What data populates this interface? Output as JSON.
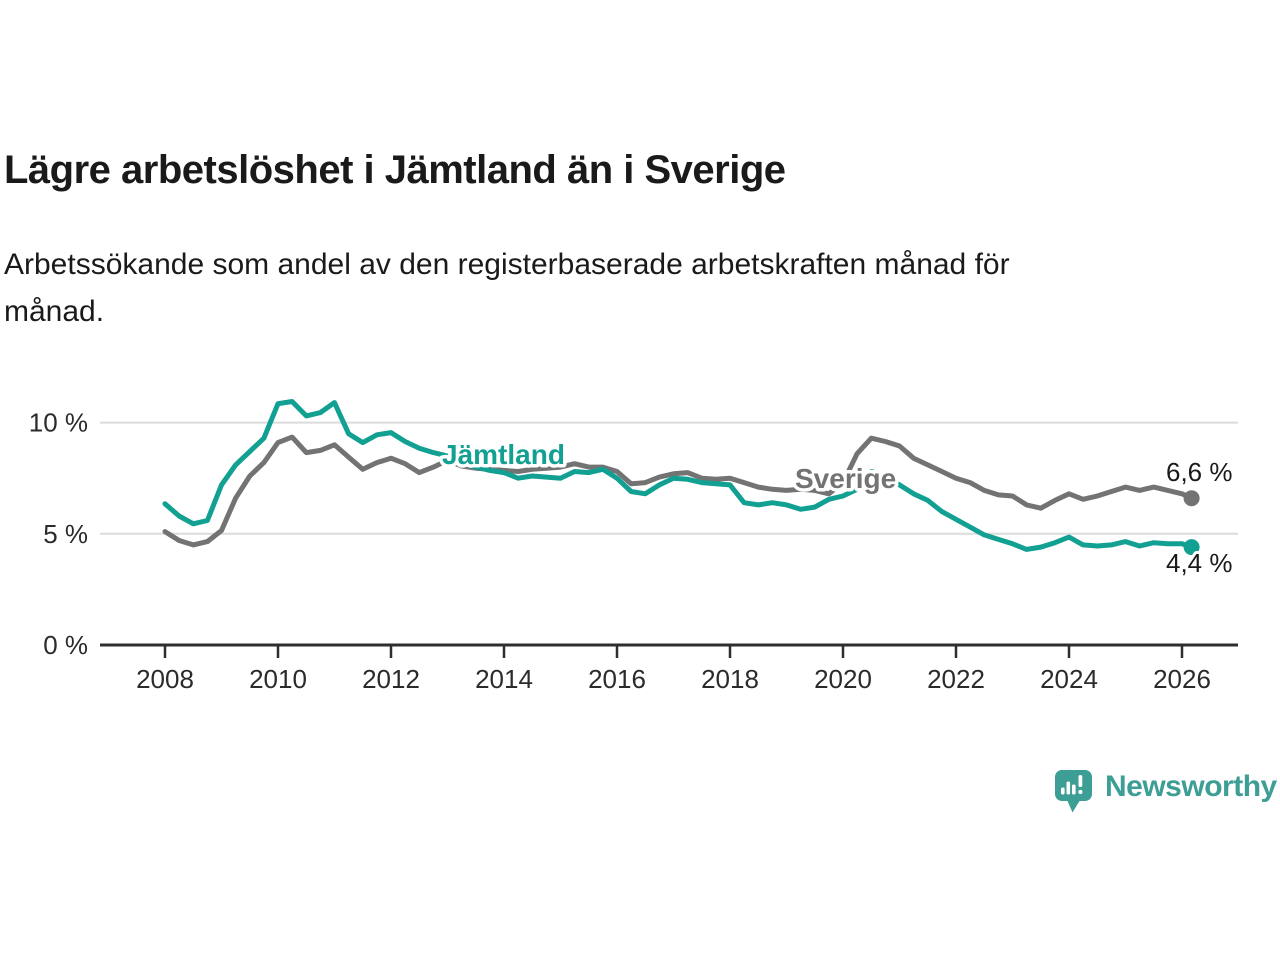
{
  "header": {
    "title": "Lägre arbetslöshet i Jämtland än i Sverige",
    "subtitle_lines": [
      "Arbetssökande som andel av den registerbaserade arbetskraften månad för",
      "månad."
    ]
  },
  "chart_data": {
    "type": "line",
    "title": "Lägre arbetslöshet i Jämtland än i Sverige",
    "xlabel": "",
    "ylabel": "Arbetssökande som andel av den registerbaserade arbetskraften",
    "x_unit": "decimal year, monthly series 2008 - feb 2026",
    "xlim": [
      2007.9,
      2026.9
    ],
    "ylim": [
      0,
      11.6
    ],
    "grid": "horizontal",
    "y_ticks": [
      {
        "value": 0,
        "label": "0 %"
      },
      {
        "value": 5,
        "label": "5 %"
      },
      {
        "value": 10,
        "label": "10 %"
      }
    ],
    "x_ticks": [
      {
        "value": 2008,
        "label": "2008"
      },
      {
        "value": 2010,
        "label": "2010"
      },
      {
        "value": 2012,
        "label": "2012"
      },
      {
        "value": 2014,
        "label": "2014"
      },
      {
        "value": 2016,
        "label": "2016"
      },
      {
        "value": 2018,
        "label": "2018"
      },
      {
        "value": 2020,
        "label": "2020"
      },
      {
        "value": 2022,
        "label": "2022"
      },
      {
        "value": 2024,
        "label": "2024"
      },
      {
        "value": 2026,
        "label": "2026"
      }
    ],
    "series": [
      {
        "name": "Jämtland",
        "color": "#12a092",
        "end_value": 4.4,
        "end_label": "4,4 %",
        "points": [
          [
            2008.0,
            6.35
          ],
          [
            2008.25,
            5.8
          ],
          [
            2008.5,
            5.45
          ],
          [
            2008.75,
            5.6
          ],
          [
            2009.0,
            7.2
          ],
          [
            2009.25,
            8.1
          ],
          [
            2009.5,
            8.7
          ],
          [
            2009.75,
            9.3
          ],
          [
            2010.0,
            10.85
          ],
          [
            2010.25,
            10.95
          ],
          [
            2010.5,
            10.3
          ],
          [
            2010.75,
            10.45
          ],
          [
            2011.0,
            10.9
          ],
          [
            2011.25,
            9.5
          ],
          [
            2011.5,
            9.1
          ],
          [
            2011.75,
            9.45
          ],
          [
            2012.0,
            9.55
          ],
          [
            2012.25,
            9.15
          ],
          [
            2012.5,
            8.85
          ],
          [
            2012.75,
            8.65
          ],
          [
            2013.0,
            8.5
          ],
          [
            2013.25,
            8.2
          ],
          [
            2013.5,
            8.0
          ],
          [
            2013.75,
            7.85
          ],
          [
            2014.0,
            7.75
          ],
          [
            2014.25,
            7.5
          ],
          [
            2014.5,
            7.6
          ],
          [
            2014.75,
            7.55
          ],
          [
            2015.0,
            7.5
          ],
          [
            2015.25,
            7.8
          ],
          [
            2015.5,
            7.75
          ],
          [
            2015.75,
            7.9
          ],
          [
            2016.0,
            7.5
          ],
          [
            2016.25,
            6.9
          ],
          [
            2016.5,
            6.8
          ],
          [
            2016.75,
            7.2
          ],
          [
            2017.0,
            7.5
          ],
          [
            2017.25,
            7.45
          ],
          [
            2017.5,
            7.3
          ],
          [
            2017.75,
            7.25
          ],
          [
            2018.0,
            7.2
          ],
          [
            2018.25,
            6.4
          ],
          [
            2018.5,
            6.3
          ],
          [
            2018.75,
            6.4
          ],
          [
            2019.0,
            6.3
          ],
          [
            2019.25,
            6.1
          ],
          [
            2019.5,
            6.2
          ],
          [
            2019.75,
            6.55
          ],
          [
            2020.0,
            6.7
          ],
          [
            2020.25,
            7.0
          ],
          [
            2020.5,
            7.8
          ],
          [
            2020.75,
            7.6
          ],
          [
            2021.0,
            7.2
          ],
          [
            2021.25,
            6.8
          ],
          [
            2021.5,
            6.5
          ],
          [
            2021.75,
            6.0
          ],
          [
            2022.0,
            5.65
          ],
          [
            2022.25,
            5.3
          ],
          [
            2022.5,
            4.95
          ],
          [
            2022.75,
            4.75
          ],
          [
            2023.0,
            4.55
          ],
          [
            2023.25,
            4.3
          ],
          [
            2023.5,
            4.4
          ],
          [
            2023.75,
            4.6
          ],
          [
            2024.0,
            4.85
          ],
          [
            2024.25,
            4.5
          ],
          [
            2024.5,
            4.45
          ],
          [
            2024.75,
            4.5
          ],
          [
            2025.0,
            4.65
          ],
          [
            2025.25,
            4.45
          ],
          [
            2025.5,
            4.6
          ],
          [
            2025.75,
            4.55
          ],
          [
            2026.0,
            4.55
          ],
          [
            2026.17,
            4.4
          ]
        ]
      },
      {
        "name": "Sverige",
        "color": "#737373",
        "end_value": 6.6,
        "end_label": "6,6 %",
        "points": [
          [
            2008.0,
            5.1
          ],
          [
            2008.25,
            4.7
          ],
          [
            2008.5,
            4.5
          ],
          [
            2008.75,
            4.65
          ],
          [
            2009.0,
            5.15
          ],
          [
            2009.25,
            6.6
          ],
          [
            2009.5,
            7.6
          ],
          [
            2009.75,
            8.2
          ],
          [
            2010.0,
            9.1
          ],
          [
            2010.25,
            9.35
          ],
          [
            2010.5,
            8.65
          ],
          [
            2010.75,
            8.75
          ],
          [
            2011.0,
            9.0
          ],
          [
            2011.25,
            8.45
          ],
          [
            2011.5,
            7.9
          ],
          [
            2011.75,
            8.2
          ],
          [
            2012.0,
            8.4
          ],
          [
            2012.25,
            8.15
          ],
          [
            2012.5,
            7.75
          ],
          [
            2012.75,
            8.0
          ],
          [
            2013.0,
            8.3
          ],
          [
            2013.25,
            8.05
          ],
          [
            2013.5,
            7.95
          ],
          [
            2013.75,
            7.9
          ],
          [
            2014.0,
            7.85
          ],
          [
            2014.25,
            7.8
          ],
          [
            2014.5,
            7.9
          ],
          [
            2014.75,
            7.95
          ],
          [
            2015.0,
            8.0
          ],
          [
            2015.25,
            8.15
          ],
          [
            2015.5,
            8.0
          ],
          [
            2015.75,
            8.0
          ],
          [
            2016.0,
            7.8
          ],
          [
            2016.25,
            7.25
          ],
          [
            2016.5,
            7.3
          ],
          [
            2016.75,
            7.55
          ],
          [
            2017.0,
            7.7
          ],
          [
            2017.25,
            7.75
          ],
          [
            2017.5,
            7.5
          ],
          [
            2017.75,
            7.45
          ],
          [
            2018.0,
            7.5
          ],
          [
            2018.25,
            7.3
          ],
          [
            2018.5,
            7.1
          ],
          [
            2018.75,
            7.0
          ],
          [
            2019.0,
            6.95
          ],
          [
            2019.25,
            7.0
          ],
          [
            2019.5,
            6.95
          ],
          [
            2019.75,
            6.8
          ],
          [
            2020.0,
            7.3
          ],
          [
            2020.25,
            8.6
          ],
          [
            2020.5,
            9.3
          ],
          [
            2020.75,
            9.15
          ],
          [
            2021.0,
            8.95
          ],
          [
            2021.25,
            8.4
          ],
          [
            2021.5,
            8.1
          ],
          [
            2021.75,
            7.8
          ],
          [
            2022.0,
            7.5
          ],
          [
            2022.25,
            7.3
          ],
          [
            2022.5,
            6.95
          ],
          [
            2022.75,
            6.75
          ],
          [
            2023.0,
            6.7
          ],
          [
            2023.25,
            6.3
          ],
          [
            2023.5,
            6.15
          ],
          [
            2023.75,
            6.5
          ],
          [
            2024.0,
            6.8
          ],
          [
            2024.25,
            6.55
          ],
          [
            2024.5,
            6.7
          ],
          [
            2024.75,
            6.9
          ],
          [
            2025.0,
            7.1
          ],
          [
            2025.25,
            6.95
          ],
          [
            2025.5,
            7.1
          ],
          [
            2025.75,
            6.95
          ],
          [
            2026.0,
            6.8
          ],
          [
            2026.17,
            6.6
          ]
        ]
      }
    ],
    "legend_position": "inline-labels-on-lines"
  },
  "colors": {
    "jamtland_teal": "#12a092",
    "sverige_gray": "#737373",
    "logo_teal": "#3d9e96",
    "gridline": "#dcdcdc",
    "axis": "#2e2e2e",
    "text": "#1a1a1a",
    "tick_text": "#2b2b2b"
  },
  "footer": {
    "brand": "Newsworthy"
  }
}
